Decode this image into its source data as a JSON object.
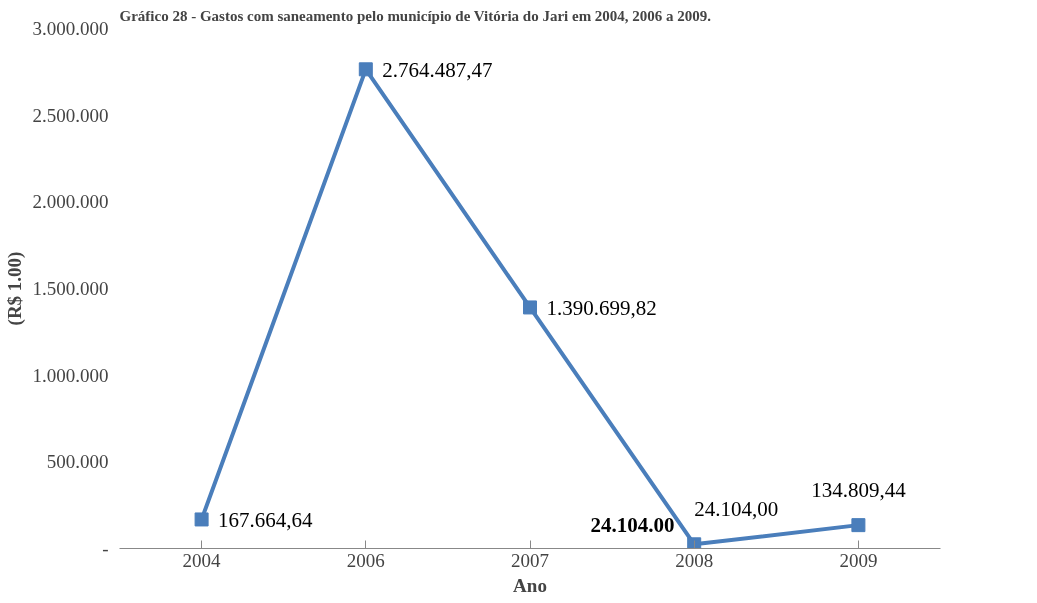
{
  "chart_data": {
    "type": "line",
    "title": "Gráfico 28 - Gastos com saneamento pelo município de Vitória do Jari em 2004, 2006 a 2009.",
    "xlabel": "Ano",
    "ylabel": "(R$ 1.00)",
    "categories": [
      "2004",
      "2006",
      "2007",
      "2008",
      "2009"
    ],
    "series": [
      {
        "color": "#4a7ebb",
        "values": [
          167664.64,
          2764487.47,
          1390699.82,
          24104.0,
          134809.44
        ],
        "value_labels": [
          "167.664,64",
          "2.764.487,47",
          "1.390.699,82",
          "24.104,00",
          "134.809,44"
        ]
      }
    ],
    "ylim": [
      0,
      3000000
    ],
    "yticks": [
      {
        "value": 0,
        "label": "-"
      },
      {
        "value": 500000,
        "label": "500.000"
      },
      {
        "value": 1000000,
        "label": "1.000.000"
      },
      {
        "value": 1500000,
        "label": "1.500.000"
      },
      {
        "value": 2000000,
        "label": "2.000.000"
      },
      {
        "value": 2500000,
        "label": "2.500.000"
      },
      {
        "value": 3000000,
        "label": "3.000.000"
      }
    ],
    "annotations": [
      {
        "text": "24.104.00",
        "x": "2008",
        "y": 24104
      }
    ],
    "marker": "square",
    "line_style": "solid",
    "grid": false
  }
}
